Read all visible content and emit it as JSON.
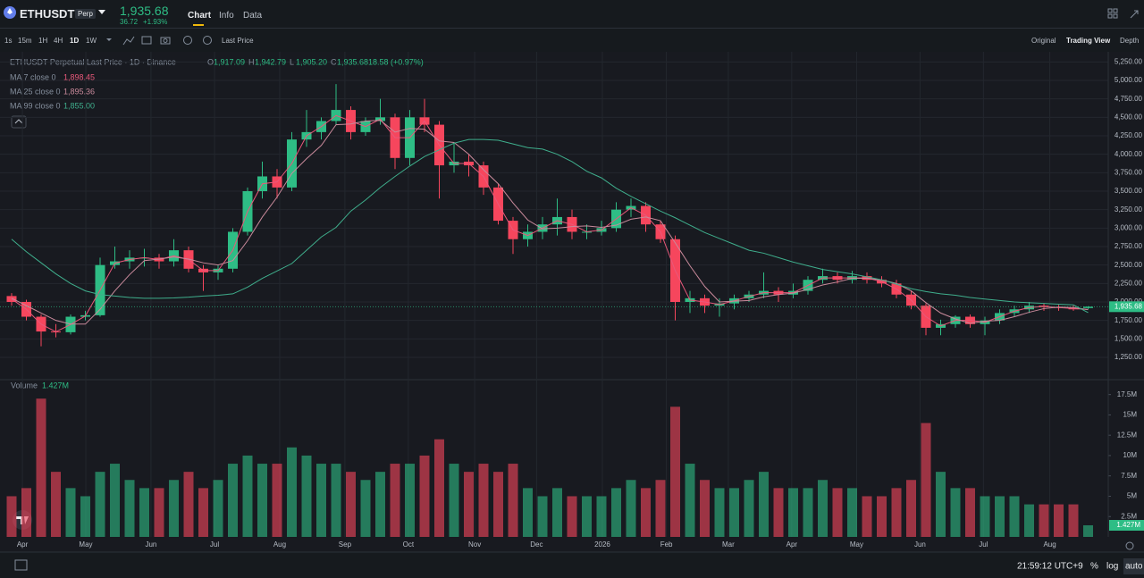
{
  "header": {
    "symbol": "ETHUSDT",
    "badge": "Perp",
    "price": "1,935.68",
    "change": "36.72",
    "change_pct": "+1.93%",
    "tabs": [
      "Chart",
      "Info",
      "Data"
    ]
  },
  "toolbar": {
    "intervals": [
      "1s",
      "15m",
      "1H",
      "4H",
      "1D",
      "1W"
    ],
    "price_type": "Last Price",
    "views": [
      "Original",
      "Trading View",
      "Depth"
    ]
  },
  "footer": {
    "time": "21:59:12 UTC+9",
    "options": [
      "%",
      "log",
      "auto"
    ]
  },
  "chart_data": {
    "type": "candlestick",
    "title": "ETHUSDT Perpetual Last Price · 1D · Binance",
    "legend": [
      {
        "label": "O",
        "value": "1,917.09"
      },
      {
        "label": "H",
        "value": "1,942.79"
      },
      {
        "label": "L",
        "value": "1,905.20"
      },
      {
        "label": "C",
        "value": "1,935.68"
      }
    ],
    "legend_change": "18.58 (+0.97%)",
    "up_color": "#2ebd85",
    "down_color": "#f6465d",
    "open": [
      2080,
      2000,
      1800,
      1600,
      1590,
      1800,
      1820,
      2500,
      2550,
      2600,
      2600,
      2550,
      2700,
      2450,
      2400,
      2450,
      2950,
      3500,
      3700,
      3550,
      4200,
      4300,
      4450,
      4600,
      4300,
      4450,
      4500,
      3950,
      4500,
      4400,
      3850,
      3900,
      3850,
      3550,
      3100,
      2850,
      2950,
      3050,
      3150,
      2950,
      2950,
      3000,
      3250,
      3300,
      3050,
      2850,
      2000,
      2050,
      1950,
      1980,
      2050,
      2100,
      2150,
      2100,
      2150,
      2300,
      2350,
      2300,
      2350,
      2300,
      2250,
      2100,
      1950,
      1650,
      1700,
      1800,
      1700,
      1750,
      1850,
      1900,
      1950,
      1930,
      1920,
      1917.09
    ],
    "high": [
      2120,
      2030,
      1830,
      1700,
      1830,
      1880,
      2600,
      2750,
      2700,
      2720,
      2650,
      2850,
      2750,
      2500,
      2500,
      3000,
      3550,
      3900,
      3800,
      4300,
      4600,
      4500,
      4950,
      4650,
      4500,
      4750,
      4550,
      4600,
      4750,
      4450,
      4150,
      4000,
      3900,
      3600,
      3150,
      3050,
      3150,
      3400,
      3250,
      3050,
      3100,
      3350,
      3400,
      3350,
      3100,
      2900,
      2150,
      2100,
      2050,
      2100,
      2150,
      2400,
      2200,
      2250,
      2350,
      2450,
      2400,
      2420,
      2400,
      2350,
      2300,
      2150,
      1980,
      1760,
      1820,
      1830,
      1800,
      1900,
      1950,
      2000,
      1980,
      1960,
      1950,
      1942.79
    ],
    "low": [
      1950,
      1750,
      1400,
      1520,
      1560,
      1750,
      1800,
      2450,
      2450,
      2480,
      2450,
      2480,
      2400,
      2150,
      2300,
      2400,
      2900,
      3400,
      3400,
      3500,
      4100,
      4200,
      4400,
      4200,
      4250,
      4400,
      3800,
      3850,
      4300,
      3400,
      3750,
      3700,
      3450,
      3050,
      2650,
      2750,
      2850,
      2900,
      2850,
      2850,
      2900,
      2950,
      3150,
      2950,
      2800,
      1750,
      1850,
      1850,
      1800,
      1900,
      2000,
      2050,
      2000,
      2050,
      2100,
      2250,
      2250,
      2250,
      2250,
      2200,
      2050,
      1900,
      1550,
      1550,
      1650,
      1650,
      1550,
      1700,
      1800,
      1850,
      1880,
      1880,
      1880,
      1905.2
    ],
    "close": [
      2000,
      1800,
      1600,
      1590,
      1800,
      1820,
      2500,
      2550,
      2600,
      2600,
      2550,
      2700,
      2450,
      2400,
      2450,
      2950,
      3500,
      3700,
      3550,
      4200,
      4300,
      4450,
      4600,
      4300,
      4450,
      4500,
      3950,
      4500,
      4400,
      3850,
      3900,
      3850,
      3550,
      3100,
      2850,
      2950,
      3050,
      3150,
      2950,
      2950,
      3000,
      3250,
      3300,
      3050,
      2850,
      2000,
      2050,
      1950,
      1980,
      2050,
      2100,
      2150,
      2100,
      2150,
      2300,
      2350,
      2300,
      2350,
      2300,
      2250,
      2100,
      1950,
      1650,
      1700,
      1800,
      1700,
      1750,
      1850,
      1900,
      1950,
      1930,
      1920,
      1900,
      1935.68
    ],
    "last_price_label": "1,935.68",
    "lines": [
      {
        "name": "MA 7 close 0",
        "color": "#e8587a",
        "last_label": "1,898.45",
        "values": [
          2040,
          1900,
          1700,
          1595,
          1695,
          1810,
          2160,
          2525,
          2575,
          2600,
          2575,
          2625,
          2575,
          2425,
          2425,
          2700,
          3225,
          3600,
          3625,
          3875,
          4250,
          4375,
          4525,
          4450,
          4375,
          4475,
          4225,
          4225,
          4450,
          4125,
          3875,
          3875,
          3700,
          3325,
          2975,
          2900,
          3000,
          3100,
          3050,
          2950,
          2975,
          3125,
          3275,
          3175,
          2950,
          2425,
          2025,
          2000,
          1965,
          2015,
          2075,
          2125,
          2125,
          2125,
          2225,
          2325,
          2325,
          2325,
          2325,
          2275,
          2175,
          2025,
          1800,
          1675,
          1750,
          1750,
          1725,
          1800,
          1875,
          1925,
          1940,
          1925,
          1910,
          1898.45
        ]
      },
      {
        "name": "MA 25 close 0",
        "color": "#c98a9b",
        "last_label": "1,895.36",
        "values": [
          2050,
          1950,
          1850,
          1750,
          1700,
          1700,
          1900,
          2150,
          2370,
          2560,
          2580,
          2610,
          2580,
          2530,
          2500,
          2560,
          2830,
          3150,
          3420,
          3740,
          3940,
          4120,
          4400,
          4410,
          4450,
          4460,
          4300,
          4350,
          4340,
          4180,
          4160,
          4000,
          3790,
          3600,
          3340,
          3110,
          2990,
          3000,
          3020,
          3030,
          3010,
          3040,
          3120,
          3150,
          3100,
          2800,
          2490,
          2210,
          2000,
          2010,
          2020,
          2070,
          2100,
          2120,
          2170,
          2230,
          2270,
          2320,
          2320,
          2300,
          2250,
          2150,
          1990,
          1850,
          1770,
          1710,
          1740,
          1750,
          1800,
          1860,
          1910,
          1930,
          1925,
          1895.36
        ]
      },
      {
        "name": "MA 99 close 0",
        "color": "#3fae8c",
        "last_label": "1,855.00",
        "values": [
          2850,
          2680,
          2530,
          2380,
          2250,
          2150,
          2100,
          2080,
          2060,
          2050,
          2050,
          2055,
          2065,
          2080,
          2090,
          2110,
          2200,
          2320,
          2420,
          2520,
          2700,
          2880,
          3010,
          3230,
          3380,
          3550,
          3700,
          3840,
          3970,
          4060,
          4150,
          4200,
          4200,
          4190,
          4140,
          4090,
          4070,
          4000,
          3900,
          3770,
          3680,
          3540,
          3430,
          3330,
          3230,
          3140,
          3040,
          2940,
          2860,
          2780,
          2700,
          2660,
          2600,
          2540,
          2490,
          2440,
          2410,
          2380,
          2340,
          2300,
          2240,
          2180,
          2140,
          2110,
          2090,
          2060,
          2040,
          2020,
          2000,
          1990,
          1980,
          1970,
          1960,
          1855
        ]
      }
    ],
    "ylim": [
      1008,
      5363
    ],
    "yticks": [
      {
        "value": 1250,
        "label": "1,250.00"
      },
      {
        "value": 1500,
        "label": "1,500.00"
      },
      {
        "value": 1750,
        "label": "1,750.00"
      },
      {
        "value": 2000,
        "label": "2,000.00"
      },
      {
        "value": 2250,
        "label": "2,250.00"
      },
      {
        "value": 2500,
        "label": "2,500.00"
      },
      {
        "value": 2750,
        "label": "2,750.00"
      },
      {
        "value": 3000,
        "label": "3,000.00"
      },
      {
        "value": 3250,
        "label": "3,250.00"
      },
      {
        "value": 3500,
        "label": "3,500.00"
      },
      {
        "value": 3750,
        "label": "3,750.00"
      },
      {
        "value": 4000,
        "label": "4,000.00"
      },
      {
        "value": 4250,
        "label": "4,250.00"
      },
      {
        "value": 4500,
        "label": "4,500.00"
      },
      {
        "value": 4750,
        "label": "4,750.00"
      },
      {
        "value": 5000,
        "label": "5,000.00"
      },
      {
        "value": 5250,
        "label": "5,250.00"
      }
    ],
    "xticks": [
      {
        "value": 0.73,
        "label": "Apr"
      },
      {
        "value": 5.03,
        "label": "May"
      },
      {
        "value": 9.45,
        "label": "Jun"
      },
      {
        "value": 13.76,
        "label": "Jul"
      },
      {
        "value": 18.18,
        "label": "Aug"
      },
      {
        "value": 22.6,
        "label": "Sep"
      },
      {
        "value": 26.9,
        "label": "Oct"
      },
      {
        "value": 31.4,
        "label": "Nov"
      },
      {
        "value": 35.6,
        "label": "Dec"
      },
      {
        "value": 40.06,
        "label": "2026"
      },
      {
        "value": 44.4,
        "label": "Feb"
      },
      {
        "value": 48.6,
        "label": "Mar"
      },
      {
        "value": 52.9,
        "label": "Apr"
      },
      {
        "value": 57.3,
        "label": "May"
      },
      {
        "value": 61.6,
        "label": "Jun"
      },
      {
        "value": 65.9,
        "label": "Jul"
      },
      {
        "value": 70.4,
        "label": "Aug"
      }
    ],
    "grid": true,
    "volume": {
      "name": "Volume",
      "last_label": "1.427M",
      "ylim": [
        0,
        19
      ],
      "yticks": [
        {
          "value": 2.5,
          "label": "2.5M"
        },
        {
          "value": 5,
          "label": "5M"
        },
        {
          "value": 7.5,
          "label": "7.5M"
        },
        {
          "value": 10,
          "label": "10M"
        },
        {
          "value": 12.5,
          "label": "12.5M"
        },
        {
          "value": 15,
          "label": "15M"
        },
        {
          "value": 17.5,
          "label": "17.5M"
        }
      ],
      "values": [
        5,
        6,
        17,
        8,
        6,
        5,
        8,
        9,
        7,
        6,
        6,
        7,
        8,
        6,
        7,
        9,
        10,
        9,
        9,
        11,
        10,
        9,
        9,
        8,
        7,
        8,
        9,
        9,
        10,
        12,
        9,
        8,
        9,
        8,
        9,
        6,
        5,
        6,
        5,
        5,
        5,
        6,
        7,
        6,
        7,
        16,
        9,
        7,
        6,
        6,
        7,
        8,
        6,
        6,
        6,
        7,
        6,
        6,
        5,
        5,
        6,
        7,
        14,
        8,
        6,
        6,
        5,
        5,
        5,
        4,
        4,
        4,
        4,
        1.427
      ]
    }
  }
}
